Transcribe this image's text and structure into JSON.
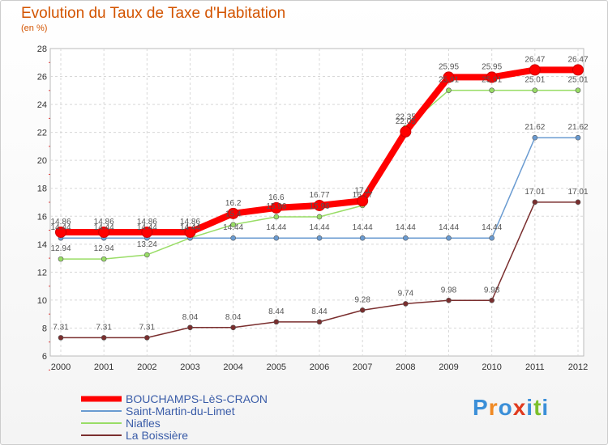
{
  "chart_data": {
    "type": "line",
    "title": "Evolution du Taux de Taxe d'Habitation",
    "subtitle": "(en %)",
    "x": [
      "2000",
      "2001",
      "2002",
      "2003",
      "2004",
      "2005",
      "2006",
      "2007",
      "2008",
      "2009",
      "2010",
      "2011",
      "2012"
    ],
    "ylim": [
      6,
      28
    ],
    "yticks": [
      6,
      8,
      10,
      12,
      14,
      16,
      18,
      20,
      22,
      24,
      26,
      28
    ],
    "grid": true,
    "legend_position": "bottom-left",
    "series": [
      {
        "name": "BOUCHAMPS-LèS-CRAON",
        "color": "#ff0000",
        "values": [
          14.86,
          14.86,
          14.86,
          14.86,
          16.2,
          16.6,
          16.77,
          17.1,
          22.05,
          25.95,
          25.95,
          26.47,
          26.47
        ],
        "labels": [
          "14.86",
          "14.86",
          "14.86",
          "14.86",
          "16.2",
          "16.6",
          "16.77",
          "17.1",
          "22.05",
          "25.95",
          "25.95",
          "26.47",
          "26.47"
        ]
      },
      {
        "name": "Saint-Martin-du-Limet",
        "color": "#6a9bd1",
        "values": [
          14.44,
          14.44,
          14.44,
          14.44,
          14.44,
          14.44,
          14.44,
          14.44,
          14.44,
          14.44,
          14.44,
          21.62,
          21.62
        ],
        "labels": [
          "14.44",
          "14.44",
          "14.44",
          "14.44",
          "14.44",
          "14.44",
          "14.44",
          "14.44",
          "14.44",
          "14.44",
          "14.44",
          "21.62",
          "21.62"
        ]
      },
      {
        "name": "Niafles",
        "color": "#99dd66",
        "values": [
          12.94,
          12.94,
          13.24,
          14.44,
          15.4,
          15.96,
          15.96,
          16.77,
          22.35,
          25.01,
          25.01,
          25.01,
          25.01
        ],
        "labels": [
          "12.94",
          "12.94",
          "13.24",
          "14.44",
          "15.4",
          "15.96",
          "15.96",
          "16.77",
          "22.35",
          "25.01",
          "25.01",
          "25.01",
          "25.01"
        ]
      },
      {
        "name": "La Boissière",
        "color": "#7a2e2e",
        "values": [
          7.31,
          7.31,
          7.31,
          8.04,
          8.04,
          8.44,
          8.44,
          9.28,
          9.74,
          9.98,
          9.98,
          17.01,
          17.01
        ],
        "labels": [
          "7.31",
          "7.31",
          "7.31",
          "8.04",
          "8.04",
          "8.44",
          "8.44",
          "9.28",
          "9.74",
          "9.98",
          "9.98",
          "17.01",
          "17.01"
        ]
      }
    ]
  },
  "brand": {
    "letters": [
      "P",
      "r",
      "o",
      "x",
      "i",
      "t",
      "i"
    ],
    "colors": [
      "#3b8fd8",
      "#f08a24",
      "#3b8fd8",
      "#e03a1e",
      "#3b8fd8",
      "#7bbf2a",
      "#3b8fd8"
    ]
  }
}
